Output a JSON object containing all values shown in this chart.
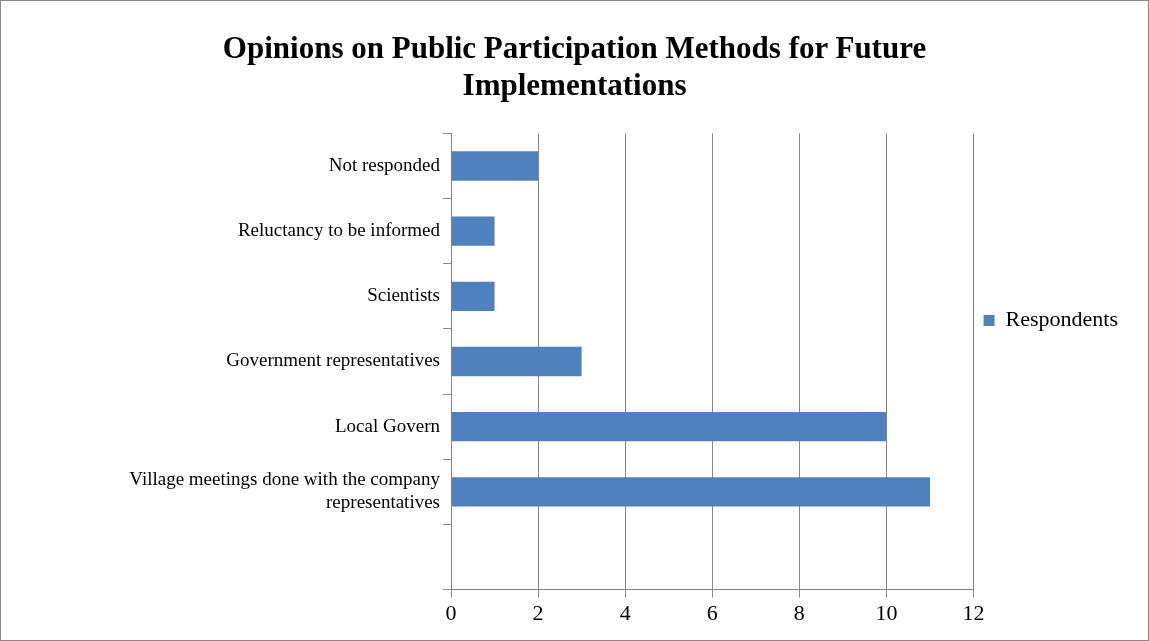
{
  "chart_data": {
    "type": "bar",
    "orientation": "horizontal",
    "title": "Opinions on Public Participation Methods for Future Implementations",
    "categories": [
      "Not responded",
      "Reluctancy to be informed",
      "Scientists",
      "Government representatives",
      "Local Govern",
      "Village meetings done with the company representatives",
      null
    ],
    "series": [
      {
        "name": "Respondents",
        "color": "#4f81bd",
        "values": [
          2,
          1,
          1,
          3,
          10,
          11,
          null
        ]
      }
    ],
    "xlim": [
      0,
      12
    ],
    "xticks": [
      0,
      2,
      4,
      6,
      8,
      10,
      12
    ],
    "grid": "x",
    "legend": "right"
  }
}
